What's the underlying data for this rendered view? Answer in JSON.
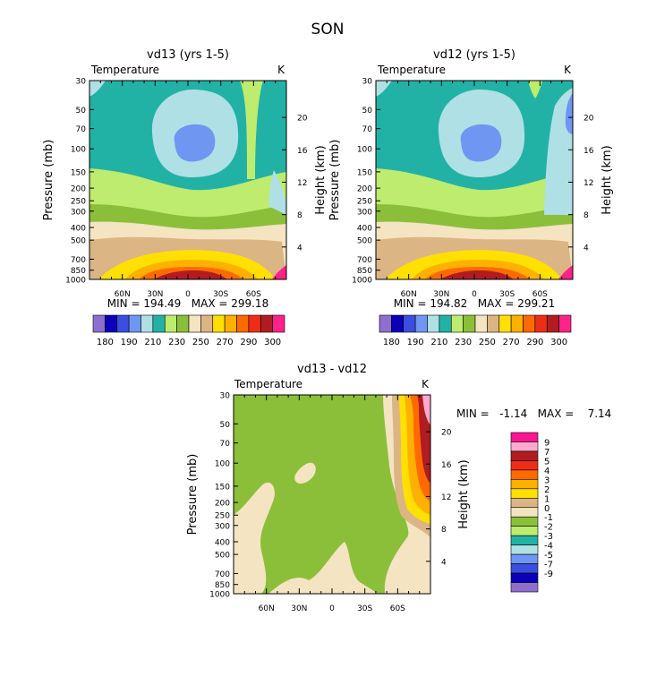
{
  "figure_title": "SON",
  "chart_data": [
    {
      "type": "contour",
      "title": "vd13 (yrs 1-5)",
      "variable_label": "Temperature",
      "units": "K",
      "ylabel": "Pressure (mb)",
      "y2label": "Height (km)",
      "x_ticks": [
        "60N",
        "30N",
        "0",
        "30S",
        "60S"
      ],
      "y_ticks": [
        "30",
        "50",
        "70",
        "100",
        "150",
        "200",
        "250",
        "300",
        "400",
        "500",
        "700",
        "850",
        "1000"
      ],
      "y2_ticks": [
        "4",
        "8",
        "12",
        "16",
        "20"
      ],
      "stats": "MIN = 194.49   MAX = 299.18",
      "min": 194.49,
      "max": 299.18,
      "levels": [
        180,
        190,
        200,
        210,
        220,
        230,
        240,
        250,
        260,
        270,
        280,
        290,
        300
      ],
      "colorbar_labels": [
        "180",
        "190",
        "210",
        "230",
        "250",
        "270",
        "290",
        "300"
      ]
    },
    {
      "type": "contour",
      "title": "vd12 (yrs 1-5)",
      "variable_label": "Temperature",
      "units": "K",
      "ylabel": "Pressure (mb)",
      "y2label": "Height (km)",
      "x_ticks": [
        "60N",
        "30N",
        "0",
        "30S",
        "60S"
      ],
      "y_ticks": [
        "30",
        "50",
        "70",
        "100",
        "150",
        "200",
        "250",
        "300",
        "400",
        "500",
        "700",
        "850",
        "1000"
      ],
      "y2_ticks": [
        "4",
        "8",
        "12",
        "16",
        "20"
      ],
      "stats": "MIN = 194.82   MAX = 299.21",
      "min": 194.82,
      "max": 299.21,
      "levels": [
        180,
        190,
        200,
        210,
        220,
        230,
        240,
        250,
        260,
        270,
        280,
        290,
        300
      ],
      "colorbar_labels": [
        "180",
        "190",
        "210",
        "230",
        "250",
        "270",
        "290",
        "300"
      ]
    },
    {
      "type": "contour",
      "title": "vd13 - vd12",
      "variable_label": "Temperature",
      "units": "K",
      "ylabel": "Pressure (mb)",
      "y2label": "Height (km)",
      "x_ticks": [
        "60N",
        "30N",
        "0",
        "30S",
        "60S"
      ],
      "y_ticks": [
        "30",
        "50",
        "70",
        "100",
        "150",
        "200",
        "250",
        "300",
        "400",
        "500",
        "700",
        "850",
        "1000"
      ],
      "y2_ticks": [
        "4",
        "8",
        "12",
        "16",
        "20"
      ],
      "stats": "MIN =   -1.14   MAX =    7.14",
      "min": -1.14,
      "max": 7.14,
      "levels": [
        -9,
        -7,
        -5,
        -4,
        -3,
        -2,
        -1,
        0,
        1,
        2,
        3,
        4,
        5,
        7,
        9
      ],
      "colorbar_labels": [
        "9",
        "7",
        "5",
        "4",
        "3",
        "2",
        "1",
        "0",
        "-1",
        "-2",
        "-3",
        "-4",
        "-5",
        "-7",
        "-9"
      ]
    }
  ],
  "palettes": {
    "temperature": [
      "#8e6fce",
      "#0a00b8",
      "#3b4ee0",
      "#6f96f0",
      "#aee0e6",
      "#22b2a5",
      "#bdec6e",
      "#8bbf3a",
      "#f5e4c1",
      "#dcb584",
      "#ffe000",
      "#ffb000",
      "#ff6a00",
      "#ee2d18",
      "#b01c22",
      "#ff2288"
    ],
    "difference": [
      "#8e6fce",
      "#0a00b8",
      "#3b4ee0",
      "#6f96f0",
      "#aee0e6",
      "#22b2a5",
      "#bdec6e",
      "#8bbf3a",
      "#f5e4c1",
      "#dcb584",
      "#ffe000",
      "#ffb000",
      "#ff6a00",
      "#ee2d18",
      "#b01c22",
      "#ffaacc",
      "#ff1493"
    ]
  }
}
